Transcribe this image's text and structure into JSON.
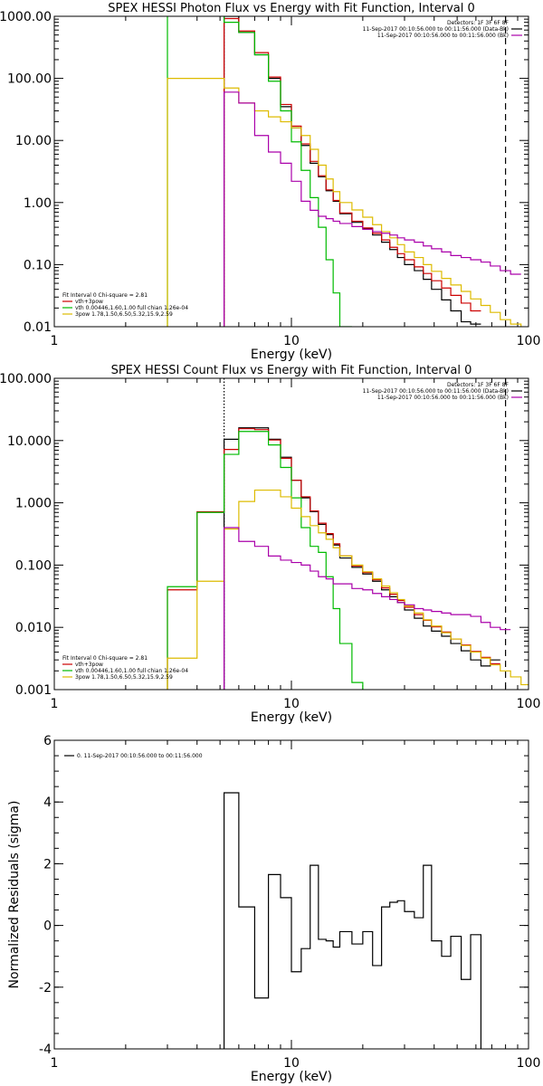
{
  "chart_data": [
    {
      "type": "line",
      "title": "SPEX HESSI Photon Flux vs Energy with Fit Function, Interval 0",
      "xlabel": "Energy (keV)",
      "ylabel": "",
      "xscale": "log",
      "yscale": "log",
      "xlim": [
        1,
        100
      ],
      "ylim": [
        0.01,
        1000
      ],
      "xticks": [
        1,
        10,
        100
      ],
      "xtick_labels": [
        "1",
        "10",
        "100"
      ],
      "yticks": [
        0.01,
        0.1,
        1,
        10,
        100,
        1000
      ],
      "ytick_labels": [
        "0.01",
        "0.10",
        "1.00",
        "10.00",
        "100.00",
        "1000.00"
      ],
      "grid": false,
      "legend_position": "bottom-left",
      "info_text": [
        "Detectors: 1F 3F 6F 8F",
        "11-Sep-2017 00:10:56.000 to 00:11:56.000 (Data-Bk)",
        "11-Sep-2017 00:10:56.000 to 00:11:56.000 (Bk)"
      ],
      "legend_title": "Fit Interval 0   Chi-square = 2.81",
      "legend": [
        {
          "label": "vth+3pow",
          "color": "#cc0000"
        },
        {
          "label": "vth 0.00446,1.60,1.00  full chian 1.26e-04",
          "color": "#00bb00"
        },
        {
          "label": "3pow 1.78,1.50,6.50,5.32,15.9,2.59",
          "color": "#ddbb00"
        }
      ],
      "vlines": [
        {
          "x": 5.2,
          "color": "#aa00aa",
          "style": "dotted"
        },
        {
          "x": 80,
          "color": "#000000",
          "style": "dashed"
        }
      ],
      "edges": [
        3,
        5.2,
        6,
        7,
        8,
        9,
        10,
        11,
        12,
        13,
        14,
        15,
        16,
        18,
        20,
        22,
        24,
        26,
        28,
        30,
        33,
        36,
        39,
        43,
        47,
        52,
        57,
        63,
        69,
        76,
        84,
        93,
        100
      ],
      "series": [
        {
          "color": "#000000",
          "start": 1,
          "values": [
            1000,
            550,
            240,
            100,
            35,
            16,
            8.3,
            4.3,
            2.6,
            1.55,
            1.05,
            0.66,
            0.48,
            0.38,
            0.3,
            0.23,
            0.175,
            0.13,
            0.1,
            0.08,
            0.058,
            0.04,
            0.027,
            0.018,
            0.012,
            0.011
          ]
        },
        {
          "color": "#cc0000",
          "start": 1,
          "values": [
            920,
            580,
            260,
            105,
            38,
            17,
            8.8,
            4.6,
            2.7,
            1.6,
            1.08,
            0.68,
            0.5,
            0.39,
            0.32,
            0.25,
            0.19,
            0.15,
            0.12,
            0.092,
            0.072,
            0.055,
            0.042,
            0.032,
            0.024,
            0.018
          ]
        },
        {
          "color": "#00bb00",
          "start": 0,
          "values": [
            1000000,
            800,
            550,
            240,
            90,
            30,
            9.5,
            3.3,
            1.2,
            0.4,
            0.12,
            0.035,
            0.01
          ]
        },
        {
          "color": "#ddbb00",
          "start": 0,
          "values": [
            100,
            70,
            40,
            30,
            24,
            20,
            16,
            12,
            7.2,
            4.0,
            2.4,
            1.5,
            1.0,
            0.76,
            0.58,
            0.44,
            0.34,
            0.27,
            0.21,
            0.16,
            0.13,
            0.1,
            0.078,
            0.06,
            0.047,
            0.037,
            0.028,
            0.022,
            0.017,
            0.013,
            0.011,
            0.009
          ]
        },
        {
          "color": "#aa00aa",
          "start": 1,
          "values": [
            60,
            40,
            12,
            6.5,
            4.3,
            2.2,
            1.05,
            0.75,
            0.6,
            0.55,
            0.5,
            0.46,
            0.41,
            0.37,
            0.34,
            0.32,
            0.3,
            0.27,
            0.25,
            0.23,
            0.2,
            0.18,
            0.16,
            0.14,
            0.13,
            0.12,
            0.11,
            0.095,
            0.08,
            0.07
          ]
        }
      ]
    },
    {
      "type": "line",
      "title": "SPEX HESSI Count Flux vs Energy with Fit Function, Interval 0",
      "xlabel": "Energy (keV)",
      "ylabel": "",
      "xscale": "log",
      "yscale": "log",
      "xlim": [
        1,
        100
      ],
      "ylim": [
        0.001,
        100
      ],
      "xticks": [
        1,
        10,
        100
      ],
      "xtick_labels": [
        "1",
        "10",
        "100"
      ],
      "yticks": [
        0.001,
        0.01,
        0.1,
        1,
        10,
        100
      ],
      "ytick_labels": [
        "0.001",
        "0.010",
        "0.100",
        "1.000",
        "10.000",
        "100.000"
      ],
      "grid": false,
      "legend_position": "bottom-left",
      "info_text": [
        "Detectors: 1F 3F 6F 8F",
        "11-Sep-2017 00:10:56.000 to 00:11:56.000 (Data-Bk)",
        "11-Sep-2017 00:10:56.000 to 00:11:56.000 (Bk)"
      ],
      "legend_title": "Fit Interval 0   Chi-square = 2.81",
      "legend": [
        {
          "label": "vth+3pow",
          "color": "#cc0000"
        },
        {
          "label": "vth 0.00446,1.60,1.00  full chian 1.26e-04",
          "color": "#00bb00"
        },
        {
          "label": "3pow 1.78,1.50,6.50,5.32,15.9,2.59",
          "color": "#ddbb00"
        }
      ],
      "vlines": [
        {
          "x": 5.2,
          "color": "#000000",
          "style": "dotted"
        },
        {
          "x": 5.2,
          "color": "#aa00aa",
          "style": "solid",
          "y_top": 0.4
        },
        {
          "x": 80,
          "color": "#000000",
          "style": "dashed"
        }
      ],
      "edges": [
        3,
        4,
        5.2,
        6,
        7,
        8,
        9,
        10,
        11,
        12,
        13,
        14,
        15,
        16,
        18,
        20,
        22,
        24,
        26,
        28,
        30,
        33,
        36,
        39,
        43,
        47,
        52,
        57,
        63,
        69,
        76,
        84,
        93,
        100
      ],
      "series": [
        {
          "color": "#000000",
          "start": 2,
          "values": [
            10.5,
            16,
            16,
            10.5,
            5.4,
            2.3,
            1.2,
            0.72,
            0.45,
            0.31,
            0.21,
            0.13,
            0.092,
            0.072,
            0.055,
            0.04,
            0.031,
            0.025,
            0.019,
            0.014,
            0.0105,
            0.0087,
            0.0072,
            0.0055,
            0.0042,
            0.003,
            0.0024,
            0.003
          ]
        },
        {
          "color": "#cc0000",
          "start": 0,
          "values": [
            0.04,
            0.72,
            7.2,
            15.5,
            15,
            10.2,
            5.2,
            2.3,
            1.25,
            0.74,
            0.47,
            0.32,
            0.22,
            0.14,
            0.097,
            0.076,
            0.058,
            0.043,
            0.034,
            0.027,
            0.021,
            0.016,
            0.013,
            0.0102,
            0.0084,
            0.0065,
            0.0052,
            0.0041,
            0.0033,
            0.0026
          ]
        },
        {
          "color": "#00bb00",
          "start": 0,
          "values": [
            0.045,
            0.7,
            6.0,
            14,
            14,
            8.5,
            3.7,
            1.2,
            0.4,
            0.2,
            0.16,
            0.065,
            0.02,
            0.0055,
            0.0013,
            0.0003
          ]
        },
        {
          "color": "#ddbb00",
          "start": 0,
          "values": [
            0.0032,
            0.055,
            0.38,
            1.05,
            1.6,
            1.6,
            1.25,
            0.82,
            0.6,
            0.43,
            0.33,
            0.26,
            0.19,
            0.14,
            0.1,
            0.078,
            0.06,
            0.046,
            0.036,
            0.028,
            0.022,
            0.017,
            0.0132,
            0.0105,
            0.0082,
            0.0065,
            0.0051,
            0.004,
            0.0032,
            0.0025,
            0.002,
            0.0016,
            0.0012
          ]
        },
        {
          "color": "#aa00aa",
          "start": 2,
          "values": [
            0.4,
            0.24,
            0.2,
            0.14,
            0.12,
            0.11,
            0.1,
            0.08,
            0.065,
            0.06,
            0.05,
            0.05,
            0.042,
            0.04,
            0.035,
            0.031,
            0.028,
            0.025,
            0.023,
            0.02,
            0.019,
            0.018,
            0.017,
            0.016,
            0.016,
            0.015,
            0.012,
            0.01,
            0.0092
          ]
        }
      ]
    },
    {
      "type": "line",
      "title": "",
      "xlabel": "Energy (keV)",
      "ylabel": "Normalized Residuals (sigma)",
      "xscale": "log",
      "yscale": "linear",
      "xlim": [
        1,
        100
      ],
      "ylim": [
        -4,
        6
      ],
      "xticks": [
        1,
        10,
        100
      ],
      "xtick_labels": [
        "1",
        "10",
        "100"
      ],
      "yticks": [
        -4,
        -2,
        0,
        2,
        4,
        6
      ],
      "ytick_labels": [
        "-4",
        "-2",
        "0",
        "2",
        "4",
        "6"
      ],
      "grid": false,
      "legend_position": "top-left",
      "info_text": [],
      "legend_title": "",
      "legend": [
        {
          "label": "0. 11-Sep-2017 00:10:56.000 to 00:11:56.000",
          "color": "#000000"
        }
      ],
      "vlines": [],
      "edges": [
        5.2,
        6,
        7,
        8,
        9,
        10,
        11,
        12,
        13,
        14,
        15,
        16,
        18,
        20,
        22,
        24,
        26,
        28,
        30,
        33,
        36,
        39,
        43,
        47,
        52,
        57,
        63,
        69,
        76,
        84
      ],
      "series": [
        {
          "color": "#000000",
          "start": 0,
          "drop_ends": true,
          "values": [
            4.3,
            0.6,
            -2.35,
            1.65,
            0.9,
            -1.5,
            -0.75,
            1.95,
            -0.45,
            -0.5,
            -0.7,
            -0.2,
            -0.6,
            -0.2,
            -1.3,
            0.6,
            0.75,
            0.8,
            0.45,
            0.25,
            1.95,
            -0.5,
            -1.0,
            -0.35,
            -1.75,
            -0.3
          ]
        }
      ]
    }
  ]
}
